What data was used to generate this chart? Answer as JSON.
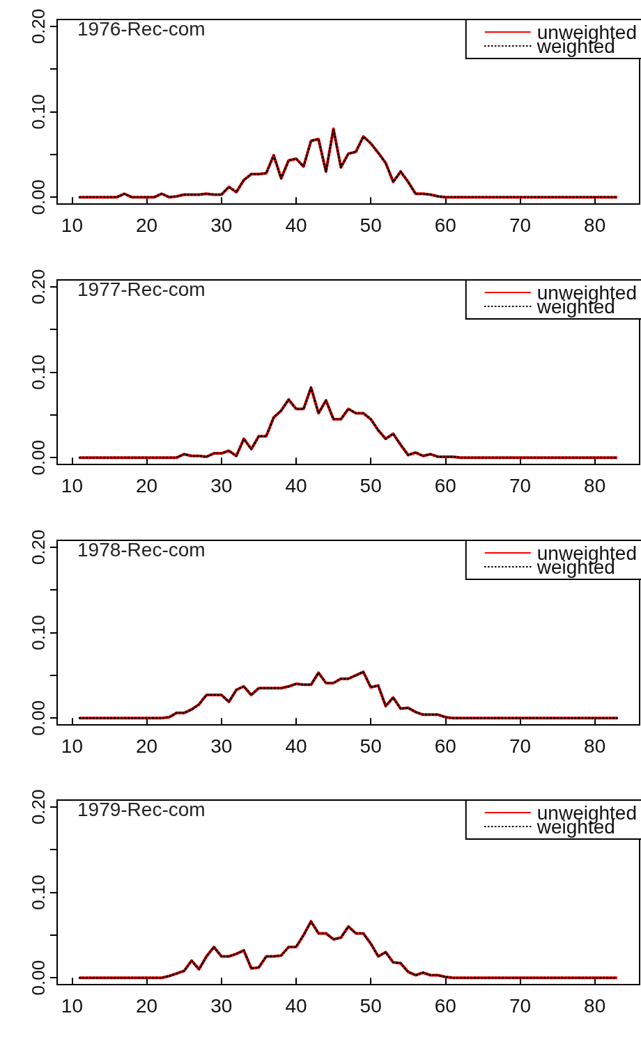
{
  "chart_data": [
    {
      "type": "line",
      "title": "1976-Rec-com",
      "legend": "top right",
      "marker": "none",
      "grid": false,
      "x": [
        11,
        12,
        13,
        14,
        15,
        16,
        17,
        18,
        19,
        20,
        21,
        22,
        23,
        24,
        25,
        26,
        27,
        28,
        29,
        30,
        31,
        32,
        33,
        34,
        35,
        36,
        37,
        38,
        39,
        40,
        41,
        42,
        43,
        44,
        45,
        46,
        47,
        48,
        49,
        50,
        51,
        52,
        53,
        54,
        55,
        56,
        57,
        58,
        59,
        60,
        61,
        62,
        63,
        64,
        65,
        66,
        67,
        68,
        69,
        70,
        71,
        72,
        73,
        74,
        75,
        76,
        77,
        78,
        79,
        80,
        81,
        82,
        83
      ],
      "xlim": [
        8,
        86
      ],
      "xticks": [
        10,
        20,
        30,
        40,
        50,
        60,
        70,
        80
      ],
      "ylim": [
        -0.008,
        0.208
      ],
      "yticks": [
        {
          "value": 0,
          "label": "0.00"
        },
        {
          "value": 0.05,
          "label": null
        },
        {
          "value": 0.1,
          "label": "0.10"
        },
        {
          "value": 0.15,
          "label": null
        },
        {
          "value": 0.2,
          "label": "0.20"
        }
      ],
      "series": [
        {
          "name": "unweighted",
          "color": "#ff0000",
          "line_style": "solid",
          "values": [
            0,
            0,
            0,
            0,
            0,
            0,
            0.004,
            0,
            0,
            0,
            0,
            0.004,
            0,
            0.001,
            0.003,
            0.003,
            0.003,
            0.004,
            0.003,
            0.003,
            0.012,
            0.006,
            0.02,
            0.027,
            0.027,
            0.028,
            0.049,
            0.022,
            0.043,
            0.045,
            0.036,
            0.066,
            0.068,
            0.03,
            0.08,
            0.035,
            0.051,
            0.053,
            0.071,
            0.063,
            0.052,
            0.04,
            0.018,
            0.03,
            0.018,
            0.004,
            0.004,
            0.003,
            0.001,
            0,
            0,
            0,
            0,
            0,
            0,
            0,
            0,
            0,
            0,
            0,
            0,
            0,
            0,
            0,
            0,
            0,
            0,
            0,
            0,
            0,
            0,
            0,
            0
          ]
        },
        {
          "name": "weighted",
          "color": "#000000",
          "line_style": "dotted",
          "values": [
            0,
            0,
            0,
            0,
            0,
            0,
            0.004,
            0,
            0,
            0,
            0,
            0.004,
            0,
            0.001,
            0.003,
            0.003,
            0.003,
            0.004,
            0.003,
            0.003,
            0.012,
            0.006,
            0.02,
            0.027,
            0.027,
            0.028,
            0.049,
            0.022,
            0.043,
            0.045,
            0.036,
            0.066,
            0.068,
            0.03,
            0.08,
            0.035,
            0.051,
            0.053,
            0.071,
            0.063,
            0.052,
            0.04,
            0.018,
            0.03,
            0.018,
            0.004,
            0.004,
            0.003,
            0.001,
            0,
            0,
            0,
            0,
            0,
            0,
            0,
            0,
            0,
            0,
            0,
            0,
            0,
            0,
            0,
            0,
            0,
            0,
            0,
            0,
            0,
            0,
            0,
            0
          ]
        }
      ]
    },
    {
      "type": "line",
      "title": "1977-Rec-com",
      "legend": "top right",
      "marker": "none",
      "grid": false,
      "x": [
        11,
        12,
        13,
        14,
        15,
        16,
        17,
        18,
        19,
        20,
        21,
        22,
        23,
        24,
        25,
        26,
        27,
        28,
        29,
        30,
        31,
        32,
        33,
        34,
        35,
        36,
        37,
        38,
        39,
        40,
        41,
        42,
        43,
        44,
        45,
        46,
        47,
        48,
        49,
        50,
        51,
        52,
        53,
        54,
        55,
        56,
        57,
        58,
        59,
        60,
        61,
        62,
        63,
        64,
        65,
        66,
        67,
        68,
        69,
        70,
        71,
        72,
        73,
        74,
        75,
        76,
        77,
        78,
        79,
        80,
        81,
        82,
        83
      ],
      "xlim": [
        8,
        86
      ],
      "xticks": [
        10,
        20,
        30,
        40,
        50,
        60,
        70,
        80
      ],
      "ylim": [
        -0.008,
        0.208
      ],
      "yticks": [
        {
          "value": 0,
          "label": "0.00"
        },
        {
          "value": 0.05,
          "label": null
        },
        {
          "value": 0.1,
          "label": "0.10"
        },
        {
          "value": 0.15,
          "label": null
        },
        {
          "value": 0.2,
          "label": "0.20"
        }
      ],
      "series": [
        {
          "name": "unweighted",
          "color": "#ff0000",
          "line_style": "solid",
          "values": [
            0,
            0,
            0,
            0,
            0,
            0,
            0,
            0,
            0,
            0,
            0,
            0,
            0,
            0,
            0.004,
            0.002,
            0.002,
            0.001,
            0.005,
            0.005,
            0.008,
            0.002,
            0.022,
            0.01,
            0.025,
            0.025,
            0.047,
            0.055,
            0.068,
            0.057,
            0.057,
            0.082,
            0.052,
            0.067,
            0.045,
            0.045,
            0.057,
            0.052,
            0.052,
            0.045,
            0.032,
            0.022,
            0.028,
            0.015,
            0.003,
            0.006,
            0.002,
            0.004,
            0.001,
            0.001,
            0.001,
            0,
            0,
            0,
            0,
            0,
            0,
            0,
            0,
            0,
            0,
            0,
            0,
            0,
            0,
            0,
            0,
            0,
            0,
            0,
            0,
            0,
            0
          ]
        },
        {
          "name": "weighted",
          "color": "#000000",
          "line_style": "dotted",
          "values": [
            0,
            0,
            0,
            0,
            0,
            0,
            0,
            0,
            0,
            0,
            0,
            0,
            0,
            0,
            0.004,
            0.002,
            0.002,
            0.001,
            0.005,
            0.005,
            0.008,
            0.002,
            0.022,
            0.01,
            0.025,
            0.025,
            0.047,
            0.055,
            0.068,
            0.057,
            0.057,
            0.082,
            0.052,
            0.067,
            0.045,
            0.045,
            0.057,
            0.052,
            0.052,
            0.045,
            0.032,
            0.022,
            0.028,
            0.015,
            0.003,
            0.006,
            0.002,
            0.004,
            0.001,
            0.001,
            0.001,
            0,
            0,
            0,
            0,
            0,
            0,
            0,
            0,
            0,
            0,
            0,
            0,
            0,
            0,
            0,
            0,
            0,
            0,
            0,
            0,
            0,
            0
          ]
        }
      ]
    },
    {
      "type": "line",
      "title": "1978-Rec-com",
      "legend": "top right",
      "marker": "none",
      "grid": false,
      "x": [
        11,
        12,
        13,
        14,
        15,
        16,
        17,
        18,
        19,
        20,
        21,
        22,
        23,
        24,
        25,
        26,
        27,
        28,
        29,
        30,
        31,
        32,
        33,
        34,
        35,
        36,
        37,
        38,
        39,
        40,
        41,
        42,
        43,
        44,
        45,
        46,
        47,
        48,
        49,
        50,
        51,
        52,
        53,
        54,
        55,
        56,
        57,
        58,
        59,
        60,
        61,
        62,
        63,
        64,
        65,
        66,
        67,
        68,
        69,
        70,
        71,
        72,
        73,
        74,
        75,
        76,
        77,
        78,
        79,
        80,
        81,
        82,
        83
      ],
      "xlim": [
        8,
        86
      ],
      "xticks": [
        10,
        20,
        30,
        40,
        50,
        60,
        70,
        80
      ],
      "ylim": [
        -0.008,
        0.208
      ],
      "yticks": [
        {
          "value": 0,
          "label": "0.00"
        },
        {
          "value": 0.05,
          "label": null
        },
        {
          "value": 0.1,
          "label": "0.10"
        },
        {
          "value": 0.15,
          "label": null
        },
        {
          "value": 0.2,
          "label": "0.20"
        }
      ],
      "series": [
        {
          "name": "unweighted",
          "color": "#ff0000",
          "line_style": "solid",
          "values": [
            0,
            0,
            0,
            0,
            0,
            0,
            0,
            0,
            0,
            0,
            0,
            0,
            0.001,
            0.006,
            0.006,
            0.01,
            0.016,
            0.027,
            0.027,
            0.027,
            0.019,
            0.033,
            0.037,
            0.027,
            0.035,
            0.035,
            0.035,
            0.035,
            0.037,
            0.04,
            0.039,
            0.039,
            0.053,
            0.041,
            0.041,
            0.046,
            0.046,
            0.05,
            0.054,
            0.036,
            0.038,
            0.014,
            0.024,
            0.011,
            0.012,
            0.007,
            0.004,
            0.004,
            0.004,
            0.001,
            0,
            0,
            0,
            0,
            0,
            0,
            0,
            0,
            0,
            0,
            0,
            0,
            0,
            0,
            0,
            0,
            0,
            0,
            0,
            0,
            0,
            0,
            0
          ]
        },
        {
          "name": "weighted",
          "color": "#000000",
          "line_style": "dotted",
          "values": [
            0,
            0,
            0,
            0,
            0,
            0,
            0,
            0,
            0,
            0,
            0,
            0,
            0.001,
            0.006,
            0.006,
            0.01,
            0.016,
            0.027,
            0.027,
            0.027,
            0.019,
            0.033,
            0.037,
            0.027,
            0.035,
            0.035,
            0.035,
            0.035,
            0.037,
            0.04,
            0.039,
            0.039,
            0.053,
            0.041,
            0.041,
            0.046,
            0.046,
            0.05,
            0.054,
            0.036,
            0.038,
            0.014,
            0.024,
            0.011,
            0.012,
            0.007,
            0.004,
            0.004,
            0.004,
            0.001,
            0,
            0,
            0,
            0,
            0,
            0,
            0,
            0,
            0,
            0,
            0,
            0,
            0,
            0,
            0,
            0,
            0,
            0,
            0,
            0,
            0,
            0,
            0
          ]
        }
      ]
    },
    {
      "type": "line",
      "title": "1979-Rec-com",
      "legend": "top right",
      "marker": "none",
      "grid": false,
      "x": [
        11,
        12,
        13,
        14,
        15,
        16,
        17,
        18,
        19,
        20,
        21,
        22,
        23,
        24,
        25,
        26,
        27,
        28,
        29,
        30,
        31,
        32,
        33,
        34,
        35,
        36,
        37,
        38,
        39,
        40,
        41,
        42,
        43,
        44,
        45,
        46,
        47,
        48,
        49,
        50,
        51,
        52,
        53,
        54,
        55,
        56,
        57,
        58,
        59,
        60,
        61,
        62,
        63,
        64,
        65,
        66,
        67,
        68,
        69,
        70,
        71,
        72,
        73,
        74,
        75,
        76,
        77,
        78,
        79,
        80,
        81,
        82,
        83
      ],
      "xlim": [
        8,
        86
      ],
      "xticks": [
        10,
        20,
        30,
        40,
        50,
        60,
        70,
        80
      ],
      "ylim": [
        -0.008,
        0.208
      ],
      "yticks": [
        {
          "value": 0,
          "label": "0.00"
        },
        {
          "value": 0.05,
          "label": null
        },
        {
          "value": 0.1,
          "label": "0.10"
        },
        {
          "value": 0.15,
          "label": null
        },
        {
          "value": 0.2,
          "label": "0.20"
        }
      ],
      "series": [
        {
          "name": "unweighted",
          "color": "#ff0000",
          "line_style": "solid",
          "values": [
            0,
            0,
            0,
            0,
            0,
            0,
            0,
            0,
            0,
            0,
            0,
            0,
            0.002,
            0.005,
            0.008,
            0.02,
            0.01,
            0.025,
            0.036,
            0.025,
            0.025,
            0.028,
            0.032,
            0.011,
            0.012,
            0.025,
            0.025,
            0.026,
            0.036,
            0.036,
            0.05,
            0.066,
            0.052,
            0.052,
            0.045,
            0.047,
            0.06,
            0.052,
            0.052,
            0.04,
            0.025,
            0.03,
            0.018,
            0.017,
            0.007,
            0.003,
            0.006,
            0.003,
            0.003,
            0.001,
            0,
            0,
            0,
            0,
            0,
            0,
            0,
            0,
            0,
            0,
            0,
            0,
            0,
            0,
            0,
            0,
            0,
            0,
            0,
            0,
            0,
            0,
            0
          ]
        },
        {
          "name": "weighted",
          "color": "#000000",
          "line_style": "dotted",
          "values": [
            0,
            0,
            0,
            0,
            0,
            0,
            0,
            0,
            0,
            0,
            0,
            0,
            0.002,
            0.005,
            0.008,
            0.02,
            0.01,
            0.025,
            0.036,
            0.025,
            0.025,
            0.028,
            0.032,
            0.011,
            0.012,
            0.025,
            0.025,
            0.026,
            0.036,
            0.036,
            0.05,
            0.066,
            0.052,
            0.052,
            0.045,
            0.047,
            0.06,
            0.052,
            0.052,
            0.04,
            0.025,
            0.03,
            0.018,
            0.017,
            0.007,
            0.003,
            0.006,
            0.003,
            0.003,
            0.001,
            0,
            0,
            0,
            0,
            0,
            0,
            0,
            0,
            0,
            0,
            0,
            0,
            0,
            0,
            0,
            0,
            0,
            0,
            0,
            0,
            0,
            0,
            0
          ]
        }
      ]
    }
  ]
}
